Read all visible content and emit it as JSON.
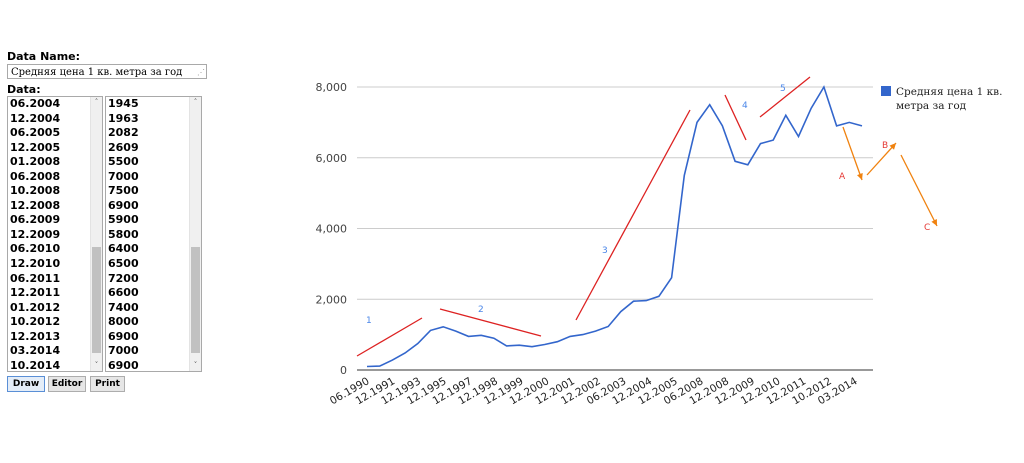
{
  "form": {
    "name_label": "Data Name:",
    "name_value": "Средняя цена 1 кв. метра за год",
    "data_label": "Data:",
    "date_list": [
      "06.2004",
      "12.2004",
      "06.2005",
      "12.2005",
      "01.2008",
      "06.2008",
      "10.2008",
      "12.2008",
      "06.2009",
      "12.2009",
      "06.2010",
      "12.2010",
      "06.2011",
      "12.2011",
      "01.2012",
      "10.2012",
      "12.2013",
      "03.2014",
      "10.2014"
    ],
    "value_list": [
      "1945",
      "1963",
      "2082",
      "2609",
      "5500",
      "7000",
      "7500",
      "6900",
      "5900",
      "5800",
      "6400",
      "6500",
      "7200",
      "6600",
      "7400",
      "8000",
      "6900",
      "7000",
      "6900"
    ],
    "buttons": {
      "draw": "Draw",
      "editor": "Editor",
      "print": "Print"
    },
    "scroll_up_glyph": "˄",
    "scroll_down_glyph": "˅",
    "grip_glyph": "⋰"
  },
  "chart_data": {
    "type": "line",
    "title": "",
    "xlabel": "",
    "ylabel": "",
    "ylim": [
      0,
      8000
    ],
    "yticks": [
      "0",
      "2,000",
      "4,000",
      "6,000",
      "8,000"
    ],
    "grid": true,
    "legend_position": "right",
    "x_tick_labels": [
      "06.1990",
      "12.1991",
      "12.1993",
      "12.1995",
      "12.1997",
      "12.1998",
      "12.1999",
      "12.2000",
      "12.2001",
      "12.2002",
      "06.2003",
      "12.2004",
      "12.2005",
      "06.2008",
      "12.2008",
      "12.2009",
      "12.2010",
      "12.2011",
      "10.2012",
      "03.2014"
    ],
    "series": [
      {
        "name": "Средняя цена 1 кв. метра за год",
        "color": "#3366cc",
        "values": [
          100,
          110,
          280,
          480,
          750,
          1120,
          1220,
          1100,
          950,
          980,
          900,
          680,
          700,
          660,
          720,
          800,
          950,
          1000,
          1100,
          1230,
          1650,
          1945,
          1963,
          2082,
          2609,
          5500,
          7000,
          7500,
          6900,
          5900,
          5800,
          6400,
          6500,
          7200,
          6600,
          7400,
          8000,
          6900,
          7000,
          6900
        ]
      }
    ],
    "annotations": [
      {
        "label": "1",
        "color": "#4a86e8"
      },
      {
        "label": "2",
        "color": "#4a86e8"
      },
      {
        "label": "3",
        "color": "#4a86e8"
      },
      {
        "label": "4",
        "color": "#4a86e8"
      },
      {
        "label": "5",
        "color": "#4a86e8"
      },
      {
        "label": "A",
        "color": "#e53935"
      },
      {
        "label": "B",
        "color": "#e53935"
      },
      {
        "label": "C",
        "color": "#e53935"
      }
    ],
    "trend_line_color": "#dd2222",
    "arrow_color": "#f0820f"
  }
}
